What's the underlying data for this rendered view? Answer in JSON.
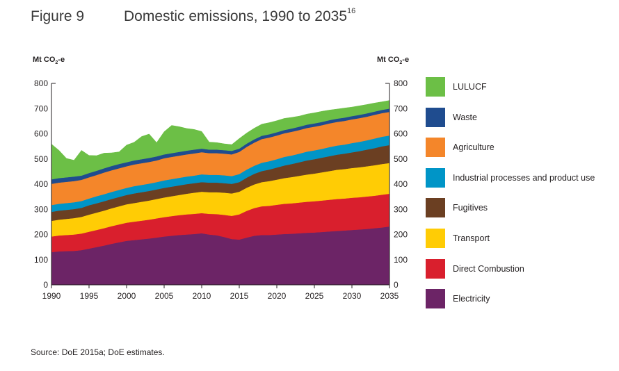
{
  "figure": {
    "label": "Figure 9",
    "title": "Domestic emissions, 1990 to 2035",
    "title_superscript": "16",
    "unit_main": "Mt CO",
    "unit_sub": "2",
    "unit_suffix": "-e",
    "source": "Source: DoE 2015a; DoE estimates."
  },
  "chart_data": {
    "type": "area",
    "stacked": true,
    "title": "Domestic emissions, 1990 to 2035",
    "ylabel": "Mt CO2-e",
    "xlabel": "",
    "xlim": [
      1990,
      2035
    ],
    "ylim": [
      0,
      800
    ],
    "x_ticks": [
      1990,
      1995,
      2000,
      2005,
      2010,
      2015,
      2020,
      2025,
      2030,
      2035
    ],
    "y_ticks": [
      0,
      100,
      200,
      300,
      400,
      500,
      600,
      700,
      800
    ],
    "grid": false,
    "legend_position": "right",
    "x": [
      1990,
      1991,
      1992,
      1993,
      1994,
      1995,
      1996,
      1997,
      1998,
      1999,
      2000,
      2001,
      2002,
      2003,
      2004,
      2005,
      2006,
      2007,
      2008,
      2009,
      2010,
      2011,
      2012,
      2013,
      2014,
      2015,
      2016,
      2017,
      2018,
      2019,
      2020,
      2021,
      2022,
      2023,
      2024,
      2025,
      2026,
      2027,
      2028,
      2029,
      2030,
      2031,
      2032,
      2033,
      2034,
      2035
    ],
    "series": [
      {
        "name": "Electricity",
        "color": "#6c2466",
        "values": [
          130,
          133,
          134,
          135,
          138,
          144,
          150,
          156,
          163,
          169,
          175,
          178,
          181,
          184,
          188,
          192,
          195,
          198,
          200,
          202,
          205,
          200,
          197,
          190,
          182,
          180,
          188,
          195,
          198,
          198,
          200,
          202,
          203,
          205,
          207,
          208,
          210,
          212,
          214,
          216,
          218,
          220,
          222,
          225,
          228,
          232
        ]
      },
      {
        "name": "Direct Combustion",
        "color": "#d91f2d",
        "values": [
          62,
          63,
          64,
          65,
          66,
          67,
          68,
          69,
          70,
          71,
          72,
          73,
          74,
          75,
          76,
          77,
          78,
          79,
          80,
          80,
          80,
          82,
          84,
          88,
          92,
          100,
          106,
          110,
          114,
          116,
          118,
          120,
          121,
          122,
          123,
          124,
          125,
          126,
          127,
          127,
          128,
          128,
          129,
          129,
          130,
          130
        ]
      },
      {
        "name": "Transport",
        "color": "#ffcc05",
        "values": [
          62,
          63,
          64,
          65,
          66,
          68,
          69,
          70,
          71,
          72,
          73,
          74,
          75,
          76,
          77,
          78,
          79,
          80,
          82,
          84,
          85,
          86,
          87,
          88,
          89,
          90,
          92,
          94,
          96,
          98,
          100,
          102,
          104,
          106,
          108,
          110,
          112,
          114,
          116,
          117,
          118,
          119,
          120,
          121,
          122,
          122
        ]
      },
      {
        "name": "Fugitives",
        "color": "#6b3f22",
        "values": [
          36,
          36,
          36,
          36,
          36,
          37,
          37,
          37,
          37,
          37,
          37,
          38,
          38,
          38,
          38,
          38,
          38,
          38,
          38,
          38,
          38,
          38,
          38,
          38,
          38,
          38,
          40,
          42,
          44,
          46,
          48,
          50,
          52,
          54,
          56,
          57,
          58,
          59,
          60,
          61,
          62,
          64,
          66,
          68,
          70,
          71
        ]
      },
      {
        "name": "Industrial processes and product use",
        "color": "#0095c7",
        "values": [
          27,
          27,
          27,
          27,
          27,
          27,
          28,
          28,
          28,
          28,
          28,
          29,
          29,
          29,
          29,
          30,
          30,
          30,
          30,
          30,
          31,
          31,
          31,
          31,
          31,
          32,
          32,
          32,
          33,
          33,
          33,
          34,
          34,
          34,
          35,
          35,
          35,
          36,
          36,
          36,
          37,
          37,
          37,
          38,
          38,
          38
        ]
      },
      {
        "name": "Agriculture",
        "color": "#f4862a",
        "values": [
          84,
          84,
          84,
          84,
          84,
          84,
          84,
          86,
          86,
          86,
          86,
          86,
          86,
          86,
          86,
          88,
          88,
          88,
          88,
          88,
          88,
          86,
          86,
          86,
          86,
          88,
          90,
          92,
          94,
          94,
          94,
          94,
          94,
          94,
          94,
          94,
          94,
          94,
          94,
          94,
          94,
          94,
          94,
          94,
          94,
          94
        ]
      },
      {
        "name": "Waste",
        "color": "#1f4c8f",
        "values": [
          18,
          18,
          18,
          18,
          17,
          17,
          17,
          17,
          17,
          17,
          16,
          16,
          16,
          16,
          16,
          15,
          15,
          15,
          15,
          15,
          14,
          14,
          14,
          14,
          14,
          13,
          13,
          13,
          13,
          13,
          13,
          13,
          13,
          13,
          13,
          13,
          13,
          13,
          13,
          13,
          13,
          13,
          13,
          13,
          13,
          13
        ]
      },
      {
        "name": "LULUCF",
        "color": "#6cbf46",
        "values": [
          140,
          110,
          75,
          65,
          100,
          70,
          60,
          60,
          52,
          48,
          68,
          72,
          90,
          95,
          55,
          90,
          110,
          100,
          88,
          80,
          68,
          30,
          28,
          25,
          25,
          40,
          42,
          44,
          46,
          46,
          46,
          46,
          44,
          42,
          42,
          42,
          42,
          40,
          38,
          38,
          36,
          36,
          35,
          34,
          32,
          32
        ]
      }
    ]
  }
}
